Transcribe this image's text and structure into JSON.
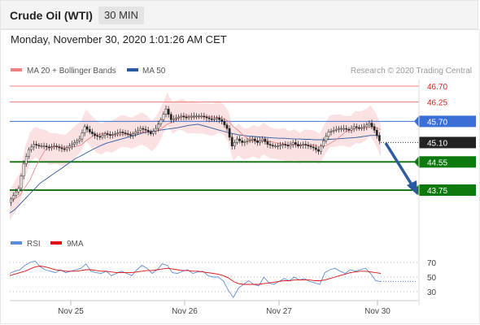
{
  "header": {
    "title": "Crude Oil (WTI)",
    "timeframe": "30 MIN",
    "datetime": "Monday, November 30, 2020 1:01:26 AM CET"
  },
  "legend": {
    "bollinger_label": "MA 20 + Bollinger Bands",
    "ma50_label": "MA 50",
    "rsi_label": "RSI",
    "rsi_ma_label": "9MA",
    "bollinger_color": "#f08080",
    "ma50_color": "#2c5aa0",
    "rsi_color": "#5b8bd8",
    "rsi_ma_color": "#dd1111"
  },
  "watermark": "Research © 2020 Trading Central",
  "chart_data": {
    "type": "candlestick",
    "x_labels": [
      "Nov 25",
      "Nov 26",
      "Nov 27",
      "Nov 30"
    ],
    "ylim": [
      43.2,
      47.2
    ],
    "current_price": 45.1,
    "levels": [
      {
        "value": 46.7,
        "label": "46.70",
        "kind": "resistance"
      },
      {
        "value": 46.25,
        "label": "46.25",
        "kind": "resistance"
      },
      {
        "value": 45.7,
        "label": "45.70",
        "kind": "pivot"
      },
      {
        "value": 44.55,
        "label": "44.55",
        "kind": "support"
      },
      {
        "value": 43.75,
        "label": "43.75",
        "kind": "support"
      }
    ],
    "level_colors": {
      "resistance": "#f08080",
      "pivot": "#3a6fd8",
      "support": "#1a7a1a"
    },
    "price_path": [
      43.4,
      43.6,
      43.8,
      44.5,
      44.9,
      45.05,
      45.0,
      45.0,
      44.95,
      45.0,
      44.95,
      44.9,
      45.0,
      45.1,
      45.2,
      45.55,
      45.4,
      45.3,
      45.25,
      45.35,
      45.3,
      45.35,
      45.4,
      45.35,
      45.3,
      45.4,
      45.5,
      45.45,
      45.35,
      45.5,
      45.75,
      46.05,
      45.75,
      45.8,
      45.85,
      45.8,
      45.85,
      45.85,
      45.85,
      45.8,
      45.75,
      45.8,
      45.7,
      45.5,
      45.0,
      45.2,
      45.1,
      45.15,
      45.2,
      45.1,
      45.2,
      45.05,
      45.0,
      45.0,
      45.05,
      45.0,
      45.1,
      45.0,
      45.05,
      45.0,
      44.95,
      44.85,
      45.15,
      45.4,
      45.45,
      45.5,
      45.5,
      45.45,
      45.55,
      45.5,
      45.55,
      45.65,
      45.45,
      45.15
    ],
    "ma50_path": [
      43.1,
      43.2,
      43.35,
      43.5,
      43.65,
      43.8,
      43.95,
      44.05,
      44.15,
      44.25,
      44.35,
      44.45,
      44.55,
      44.65,
      44.72,
      44.8,
      44.88,
      44.95,
      45.02,
      45.08,
      45.12,
      45.16,
      45.2,
      45.24,
      45.28,
      45.32,
      45.36,
      45.4,
      45.42,
      45.44,
      45.46,
      45.48,
      45.5,
      45.52,
      45.55,
      45.58,
      45.6,
      45.62,
      45.58,
      45.54,
      45.5,
      45.46,
      45.42,
      45.38,
      45.35,
      45.32,
      45.3,
      45.28,
      45.27,
      45.26,
      45.25,
      45.24,
      45.23,
      45.22,
      45.22,
      45.21,
      45.2,
      45.2,
      45.19,
      45.19,
      45.18,
      45.18,
      45.18,
      45.19,
      45.2,
      45.21,
      45.22,
      45.23,
      45.24,
      45.26,
      45.28,
      45.3,
      45.3,
      45.28
    ],
    "rsi": {
      "ticks": [
        70,
        50,
        30
      ],
      "ylim": [
        20,
        80
      ],
      "rsi_path": [
        55,
        58,
        60,
        66,
        70,
        72,
        64,
        60,
        58,
        56,
        60,
        56,
        58,
        60,
        62,
        68,
        58,
        56,
        55,
        58,
        52,
        55,
        58,
        55,
        52,
        60,
        66,
        62,
        55,
        60,
        68,
        66,
        56,
        55,
        58,
        60,
        55,
        57,
        58,
        52,
        50,
        50,
        45,
        32,
        20,
        35,
        40,
        45,
        40,
        38,
        50,
        42,
        40,
        44,
        48,
        45,
        50,
        46,
        48,
        44,
        42,
        40,
        56,
        60,
        62,
        58,
        55,
        60,
        58,
        60,
        62,
        55,
        45,
        44
      ],
      "ma_path": [
        52,
        54,
        56,
        58,
        61,
        64,
        65,
        64,
        62,
        60,
        59,
        58,
        58,
        58,
        59,
        60,
        60,
        59,
        58,
        58,
        57,
        56,
        56,
        56,
        56,
        57,
        58,
        59,
        59,
        60,
        61,
        62,
        61,
        60,
        59,
        59,
        58,
        58,
        57,
        56,
        55,
        54,
        52,
        49,
        44,
        41,
        40,
        40,
        40,
        40,
        41,
        42,
        43,
        44,
        45,
        45,
        46,
        46,
        46,
        46,
        45,
        45,
        46,
        48,
        50,
        52,
        54,
        56,
        57,
        58,
        58,
        57,
        56,
        55
      ]
    }
  }
}
